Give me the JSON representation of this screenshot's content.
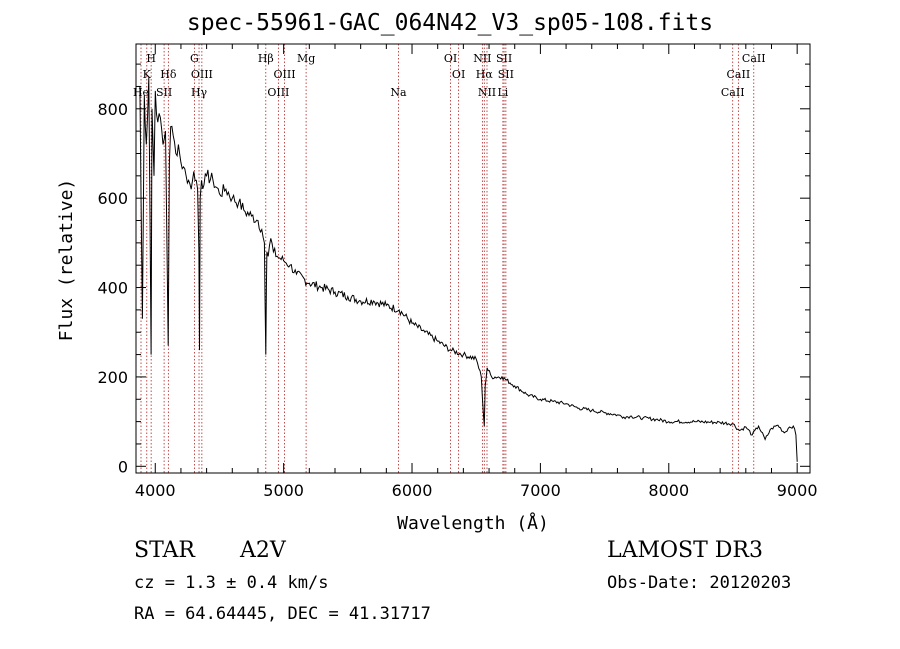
{
  "chart_data": {
    "type": "line",
    "title": "spec-55961-GAC_064N42_V3_sp05-108.fits",
    "xlabel": "Wavelength (Å)",
    "ylabel": "Flux (relative)",
    "xlim": [
      3850,
      9100
    ],
    "ylim": [
      -15,
      945
    ],
    "xticks": [
      4000,
      5000,
      6000,
      7000,
      8000,
      9000
    ],
    "yticks": [
      0,
      200,
      400,
      600,
      800
    ],
    "grid": false,
    "line_color": "#000000",
    "marker_color": "#b22222",
    "series": [
      {
        "name": "spectrum",
        "x": [
          3880,
          3900,
          3915,
          3930,
          3950,
          3968,
          3975,
          3990,
          4000,
          4020,
          4040,
          4060,
          4080,
          4101,
          4110,
          4120,
          4140,
          4160,
          4180,
          4200,
          4220,
          4240,
          4260,
          4280,
          4300,
          4320,
          4330,
          4340,
          4345,
          4350,
          4360,
          4380,
          4400,
          4450,
          4500,
          4550,
          4600,
          4650,
          4700,
          4750,
          4800,
          4830,
          4850,
          4855,
          4861,
          4866,
          4870,
          4880,
          4900,
          4920,
          4950,
          5000,
          5050,
          5100,
          5200,
          5300,
          5400,
          5500,
          5600,
          5700,
          5800,
          5900,
          6000,
          6100,
          6200,
          6300,
          6400,
          6500,
          6540,
          6555,
          6563,
          6570,
          6585,
          6620,
          6700,
          6800,
          6900,
          7000,
          7100,
          7200,
          7300,
          7400,
          7500,
          7600,
          7650,
          7700,
          7800,
          7900,
          8000,
          8200,
          8400,
          8500,
          8550,
          8600,
          8650,
          8700,
          8750,
          8800,
          8850,
          8900,
          8940,
          8970,
          8990,
          9000
        ],
        "y": [
          850,
          330,
          830,
          720,
          870,
          250,
          800,
          650,
          840,
          770,
          780,
          720,
          750,
          270,
          680,
          760,
          740,
          700,
          720,
          680,
          670,
          650,
          640,
          620,
          660,
          640,
          620,
          480,
          260,
          600,
          640,
          630,
          650,
          640,
          610,
          620,
          600,
          590,
          570,
          560,
          550,
          530,
          500,
          380,
          250,
          400,
          480,
          470,
          510,
          480,
          470,
          460,
          450,
          430,
          410,
          400,
          390,
          380,
          370,
          370,
          360,
          350,
          320,
          300,
          280,
          260,
          250,
          240,
          200,
          120,
          90,
          180,
          220,
          200,
          200,
          180,
          160,
          150,
          145,
          140,
          130,
          125,
          120,
          115,
          110,
          112,
          108,
          105,
          100,
          100,
          98,
          95,
          80,
          88,
          70,
          90,
          60,
          85,
          92,
          75,
          88,
          90,
          70,
          10
        ]
      }
    ],
    "lines": [
      {
        "label": "He",
        "wavelength": 3889,
        "row": 3
      },
      {
        "label": "K",
        "wavelength": 3934,
        "row": 2
      },
      {
        "label": "H",
        "wavelength": 3968,
        "row": 1
      },
      {
        "label": "SII",
        "wavelength": 4069,
        "row": 3
      },
      {
        "label": "Hδ",
        "wavelength": 4102,
        "row": 2
      },
      {
        "label": "G",
        "wavelength": 4305,
        "row": 1
      },
      {
        "label": "Hγ",
        "wavelength": 4341,
        "row": 3
      },
      {
        "label": "OIII",
        "wavelength": 4363,
        "row": 2
      },
      {
        "label": "Hβ",
        "wavelength": 4861,
        "row": 1
      },
      {
        "label": "OIII",
        "wavelength": 4959,
        "row": 3
      },
      {
        "label": "OIII",
        "wavelength": 5007,
        "row": 2
      },
      {
        "label": "Mg",
        "wavelength": 5175,
        "row": 1
      },
      {
        "label": "Na",
        "wavelength": 5894,
        "row": 3
      },
      {
        "label": "OI",
        "wavelength": 6300,
        "row": 1
      },
      {
        "label": "OI",
        "wavelength": 6363,
        "row": 2
      },
      {
        "label": "NII",
        "wavelength": 6548,
        "row": 1
      },
      {
        "label": "NII",
        "wavelength": 6584,
        "row": 3
      },
      {
        "label": "Hα",
        "wavelength": 6563,
        "row": 2
      },
      {
        "label": "SII",
        "wavelength": 6717,
        "row": 1
      },
      {
        "label": "SII",
        "wavelength": 6731,
        "row": 2
      },
      {
        "label": "Li",
        "wavelength": 6708,
        "row": 3
      },
      {
        "label": "CaII",
        "wavelength": 8498,
        "row": 3
      },
      {
        "label": "CaII",
        "wavelength": 8542,
        "row": 2
      },
      {
        "label": "CaII",
        "wavelength": 8662,
        "row": 1
      }
    ]
  },
  "info": {
    "object_class": "STAR",
    "subclass": "A2V",
    "survey": "LAMOST DR3",
    "cz": "cz = 1.3 ± 0.4 km/s",
    "obs_date": "Obs-Date: 20120203",
    "coords": "RA =  64.64445, DEC =  41.31717"
  }
}
